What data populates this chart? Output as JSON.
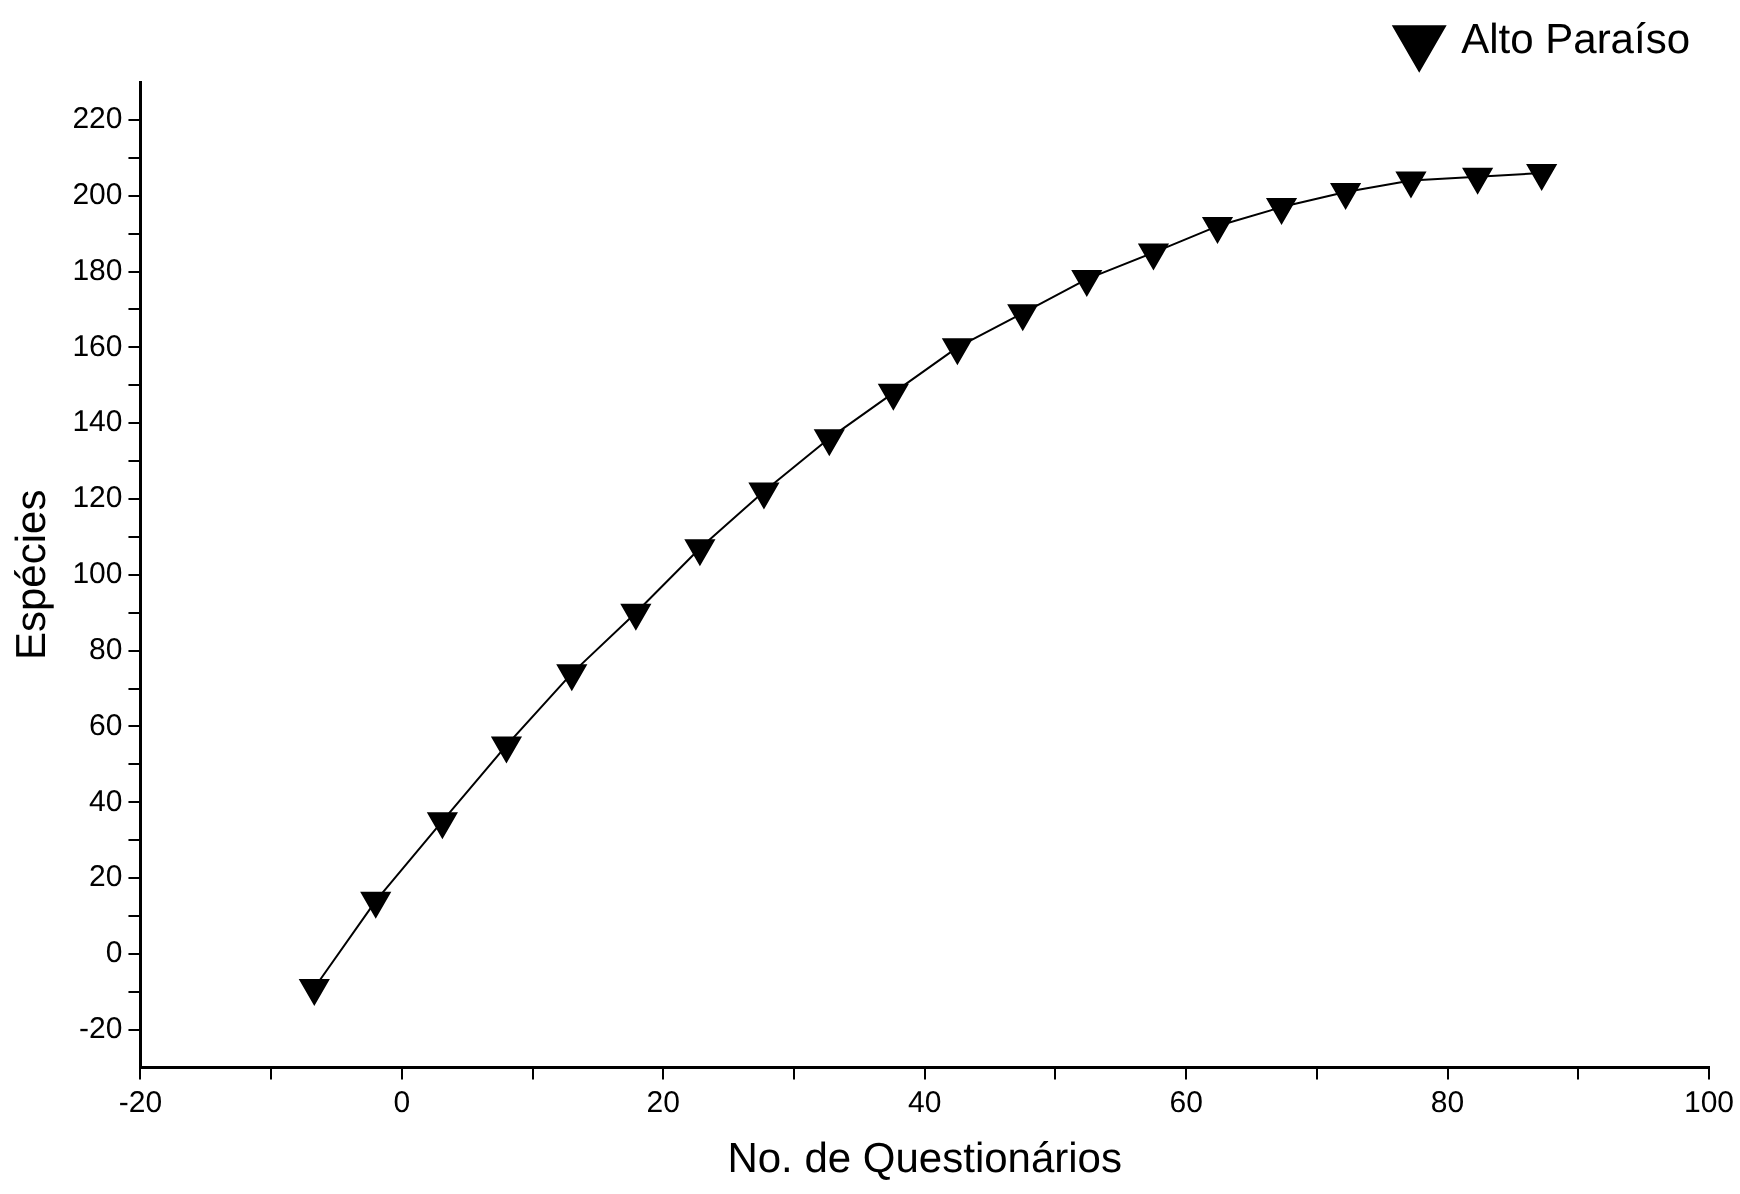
{
  "chart_data": {
    "type": "line",
    "xlabel": "No. de Questionários",
    "ylabel": "Espécies",
    "series": [
      {
        "name": "Alto Paraíso",
        "color": "#000000",
        "x": [
          -6.7,
          -2,
          3.1,
          8,
          13,
          17.9,
          22.8,
          27.7,
          32.7,
          37.6,
          42.5,
          47.5,
          52.4,
          57.5,
          62.4,
          67.3,
          72.2,
          77.2,
          82.3,
          87.2
        ],
        "values": [
          -9,
          14,
          35,
          55,
          74,
          90,
          107,
          122,
          136,
          148,
          160,
          169,
          178,
          185,
          192,
          197,
          201,
          204,
          205,
          206
        ]
      }
    ],
    "xlim": [
      -20,
      100
    ],
    "xticks": [
      -20,
      {
        "value": -10,
        "label": null
      },
      0,
      {
        "value": 10,
        "label": null
      },
      20,
      {
        "value": 30,
        "label": null
      },
      40,
      {
        "value": 50,
        "label": null
      },
      60,
      {
        "value": 70,
        "label": null
      },
      80,
      {
        "value": 90,
        "label": null
      },
      100
    ],
    "ylim": [
      -30,
      230
    ],
    "yticks": [
      -20,
      {
        "value": -10,
        "label": null
      },
      0,
      {
        "value": 10,
        "label": null
      },
      20,
      {
        "value": 30,
        "label": null
      },
      40,
      {
        "value": 50,
        "label": null
      },
      60,
      {
        "value": 70,
        "label": null
      },
      80,
      {
        "value": 90,
        "label": null
      },
      100,
      {
        "value": 110,
        "label": null
      },
      120,
      {
        "value": 130,
        "label": null
      },
      140,
      {
        "value": 150,
        "label": null
      },
      160,
      {
        "value": 170,
        "label": null
      },
      180,
      {
        "value": 190,
        "label": null
      },
      200,
      {
        "value": 210,
        "label": null
      },
      220
    ],
    "grid": false,
    "legend": "top right",
    "marker": "triangle",
    "line_style": "solid"
  }
}
